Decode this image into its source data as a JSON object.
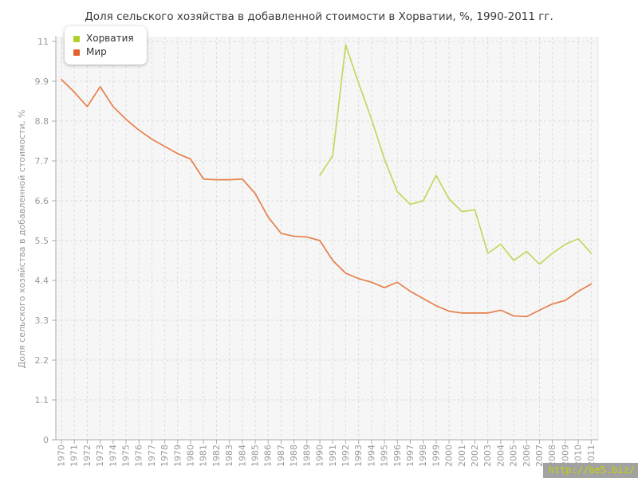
{
  "title": "Доля сельского хозяйства в добавленной стоимости в Хорватии, %, 1990-2011 гг.",
  "legend": {
    "items": [
      {
        "label": "Хорватия",
        "marker_color": "#aed129"
      },
      {
        "label": "Мир",
        "marker_color": "#e2622c"
      }
    ]
  },
  "watermark": "http://be5.biz/",
  "colors": {
    "plot_bg": "#f6f6f6",
    "grid": "#dcdcdc",
    "plot_border": "#e6e6e6",
    "axis": "#aaaaaa",
    "tick_text": "#999999",
    "title_text": "#3a3a3a",
    "watermark_bg": "#a2a2a2",
    "watermark_text": "#c9d301"
  },
  "chart_data": {
    "type": "line",
    "x": [
      1970,
      1971,
      1972,
      1973,
      1974,
      1975,
      1976,
      1977,
      1978,
      1979,
      1980,
      1981,
      1982,
      1983,
      1984,
      1985,
      1986,
      1987,
      1988,
      1989,
      1990,
      1991,
      1992,
      1993,
      1994,
      1995,
      1996,
      1997,
      1998,
      1999,
      2000,
      2001,
      2002,
      2003,
      2004,
      2005,
      2006,
      2007,
      2008,
      2009,
      2010,
      2011
    ],
    "series": [
      {
        "name": "Хорватия",
        "color": "#bfd95e",
        "start_year": 1990,
        "values": [
          7.3,
          7.85,
          10.9,
          9.85,
          8.85,
          7.75,
          6.85,
          6.5,
          6.6,
          7.3,
          6.65,
          6.3,
          6.35,
          5.15,
          5.4,
          4.95,
          5.2,
          4.85,
          5.15,
          5.4,
          5.55,
          5.15
        ]
      },
      {
        "name": "Мир",
        "color": "#e6804b",
        "start_year": 1970,
        "values": [
          9.95,
          9.6,
          9.2,
          9.75,
          9.2,
          8.85,
          8.55,
          8.3,
          8.1,
          7.9,
          7.75,
          7.2,
          7.18,
          7.18,
          7.2,
          6.8,
          6.15,
          5.7,
          5.62,
          5.6,
          5.5,
          4.95,
          4.6,
          4.45,
          4.35,
          4.2,
          4.35,
          4.1,
          3.9,
          3.7,
          3.55,
          3.5,
          3.5,
          3.5,
          3.58,
          3.42,
          3.4,
          3.58,
          3.75,
          3.85,
          4.1,
          4.3
        ]
      }
    ],
    "title": "Доля сельского хозяйства в добавленной стоимости в Хорватии, %, 1990-2011 гг.",
    "xlabel": "",
    "ylabel": "Доля сельского хозяйства в добавленной стоимости, %",
    "ylim": [
      0,
      11
    ],
    "yticks": [
      0,
      1.1,
      2.2,
      3.3,
      4.4,
      5.5,
      6.6,
      7.7,
      8.8,
      9.9,
      11
    ],
    "ytick_labels": [
      "0",
      "1.1",
      "2.2",
      "3.3",
      "4.4",
      "5.5",
      "6.6",
      "7.7",
      "8.8",
      "9.9",
      "11"
    ],
    "grid": true,
    "legend_position": "top-left"
  }
}
